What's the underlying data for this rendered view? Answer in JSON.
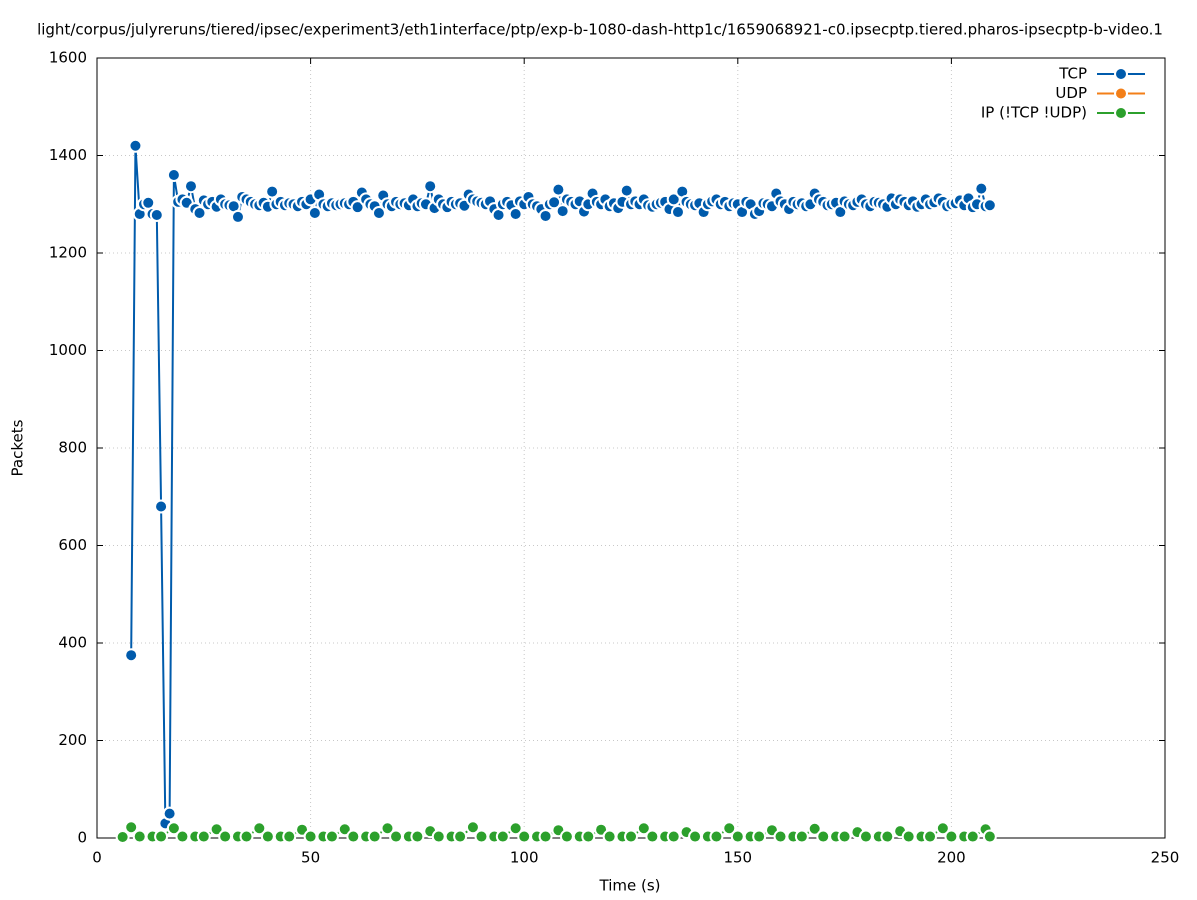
{
  "chart_data": {
    "type": "line",
    "title": "light/corpus/julyreruns/tiered/ipsec/experiment3/eth1interface/ptp/exp-b-1080-dash-http1c/1659068921-c0.ipsecptp.tiered.pharos-ipsecptp-b-video.1",
    "xlabel": "Time (s)",
    "ylabel": "Packets",
    "xlim": [
      0,
      250
    ],
    "xticks": [
      0,
      50,
      100,
      150,
      200,
      250
    ],
    "ylim": [
      0,
      1600
    ],
    "yticks": [
      0,
      200,
      400,
      600,
      800,
      1000,
      1200,
      1400,
      1600
    ],
    "grid": true,
    "legend": "top-right",
    "series": [
      {
        "name": "TCP",
        "color": "#005bac",
        "x": [
          8,
          9,
          10,
          11,
          12,
          13,
          14,
          15,
          16,
          17,
          18,
          19,
          20,
          21,
          22,
          23,
          24,
          25,
          26,
          27,
          28,
          29,
          30,
          31,
          32,
          33,
          34,
          35,
          36,
          37,
          38,
          39,
          40,
          41,
          42,
          43,
          44,
          45,
          46,
          47,
          48,
          49,
          50,
          51,
          52,
          53,
          54,
          55,
          56,
          57,
          58,
          59,
          60,
          61,
          62,
          63,
          64,
          65,
          66,
          67,
          68,
          69,
          70,
          71,
          72,
          73,
          74,
          75,
          76,
          77,
          78,
          79,
          80,
          81,
          82,
          83,
          84,
          85,
          86,
          87,
          88,
          89,
          90,
          91,
          92,
          93,
          94,
          95,
          96,
          97,
          98,
          99,
          100,
          101,
          102,
          103,
          104,
          105,
          106,
          107,
          108,
          109,
          110,
          111,
          112,
          113,
          114,
          115,
          116,
          117,
          118,
          119,
          120,
          121,
          122,
          123,
          124,
          125,
          126,
          127,
          128,
          129,
          130,
          131,
          132,
          133,
          134,
          135,
          136,
          137,
          138,
          139,
          140,
          141,
          142,
          143,
          144,
          145,
          146,
          147,
          148,
          149,
          150,
          151,
          152,
          153,
          154,
          155,
          156,
          157,
          158,
          159,
          160,
          161,
          162,
          163,
          164,
          165,
          166,
          167,
          168,
          169,
          170,
          171,
          172,
          173,
          174,
          175,
          176,
          177,
          178,
          179,
          180,
          181,
          182,
          183,
          184,
          185,
          186,
          187,
          188,
          189,
          190,
          191,
          192,
          193,
          194,
          195,
          196,
          197,
          198,
          199,
          200,
          201,
          202,
          203,
          204,
          205,
          206,
          207,
          208,
          209
        ],
        "values": [
          375,
          1420,
          1280,
          1300,
          1303,
          1280,
          1278,
          680,
          30,
          50,
          1360,
          1305,
          1310,
          1303,
          1337,
          1290,
          1282,
          1308,
          1300,
          1305,
          1295,
          1310,
          1300,
          1298,
          1296,
          1274,
          1315,
          1310,
          1305,
          1300,
          1298,
          1303,
          1295,
          1326,
          1300,
          1305,
          1298,
          1302,
          1300,
          1296,
          1305,
          1300,
          1310,
          1282,
          1320,
          1300,
          1296,
          1302,
          1298,
          1300,
          1302,
          1300,
          1305,
          1294,
          1324,
          1310,
          1300,
          1296,
          1282,
          1318,
          1300,
          1296,
          1305,
          1300,
          1302,
          1298,
          1310,
          1296,
          1302,
          1300,
          1337,
          1292,
          1310,
          1300,
          1294,
          1305,
          1300,
          1302,
          1297,
          1320,
          1310,
          1306,
          1303,
          1300,
          1306,
          1290,
          1278,
          1300,
          1305,
          1298,
          1280,
          1306,
          1300,
          1315,
          1300,
          1296,
          1290,
          1276,
          1300,
          1304,
          1330,
          1286,
          1310,
          1305,
          1300,
          1306,
          1285,
          1300,
          1322,
          1305,
          1300,
          1310,
          1296,
          1302,
          1292,
          1305,
          1328,
          1300,
          1306,
          1300,
          1310,
          1298,
          1295,
          1300,
          1303,
          1305,
          1290,
          1310,
          1284,
          1326,
          1305,
          1300,
          1298,
          1302,
          1284,
          1300,
          1306,
          1310,
          1300,
          1305,
          1296,
          1302,
          1300,
          1284,
          1305,
          1300,
          1280,
          1286,
          1302,
          1300,
          1296,
          1322,
          1306,
          1300,
          1290,
          1305,
          1300,
          1302,
          1296,
          1300,
          1322,
          1310,
          1305,
          1298,
          1300,
          1303,
          1284,
          1306,
          1300,
          1298,
          1305,
          1310,
          1300,
          1296,
          1305,
          1303,
          1300,
          1295,
          1312,
          1300,
          1310,
          1305,
          1298,
          1306,
          1295,
          1300,
          1310,
          1300,
          1304,
          1312,
          1305,
          1296,
          1300,
          1302,
          1308,
          1298,
          1312,
          1294,
          1300,
          1332,
          1296,
          1298
        ]
      },
      {
        "name": "UDP",
        "color": "#f37f18",
        "x": [],
        "values": []
      },
      {
        "name": "IP (!TCP  !UDP)",
        "color": "#2ca02c",
        "x": [
          6,
          8,
          10,
          13,
          15,
          18,
          20,
          23,
          25,
          28,
          30,
          33,
          35,
          38,
          40,
          43,
          45,
          48,
          50,
          53,
          55,
          58,
          60,
          63,
          65,
          68,
          70,
          73,
          75,
          78,
          80,
          83,
          85,
          88,
          90,
          93,
          95,
          98,
          100,
          103,
          105,
          108,
          110,
          113,
          115,
          118,
          120,
          123,
          125,
          128,
          130,
          133,
          135,
          138,
          140,
          143,
          145,
          148,
          150,
          153,
          155,
          158,
          160,
          163,
          165,
          168,
          170,
          173,
          175,
          178,
          180,
          183,
          185,
          188,
          190,
          193,
          195,
          198,
          200,
          203,
          205,
          208,
          209
        ],
        "values": [
          2,
          22,
          3,
          3,
          3,
          20,
          3,
          3,
          3,
          18,
          3,
          3,
          3,
          20,
          3,
          3,
          3,
          17,
          3,
          3,
          3,
          18,
          3,
          3,
          3,
          20,
          3,
          3,
          3,
          14,
          3,
          3,
          3,
          22,
          3,
          3,
          3,
          20,
          3,
          3,
          3,
          16,
          3,
          3,
          3,
          17,
          3,
          3,
          3,
          20,
          3,
          3,
          3,
          12,
          3,
          3,
          3,
          20,
          3,
          3,
          3,
          16,
          3,
          3,
          3,
          19,
          3,
          3,
          3,
          12,
          3,
          3,
          3,
          14,
          3,
          3,
          3,
          20,
          3,
          3,
          3,
          18,
          3
        ]
      }
    ]
  }
}
